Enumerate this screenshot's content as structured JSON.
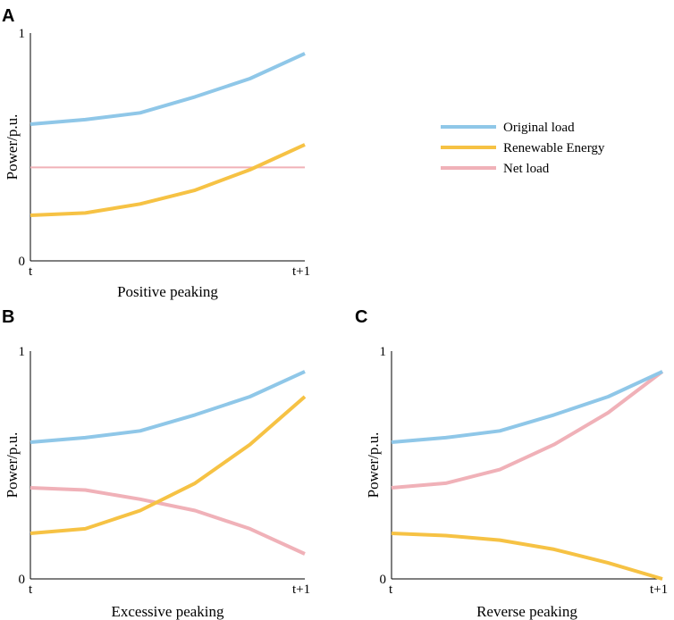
{
  "chart_data": [
    {
      "type": "line",
      "panel": "A",
      "xlabel": "Positive peaking",
      "ylabel": "Power/p.u.",
      "x_ticks": [
        "t",
        "t+1"
      ],
      "y_ticks": [
        "0",
        "1"
      ],
      "xlim": [
        0,
        1
      ],
      "ylim": [
        0,
        1
      ],
      "x": [
        0,
        0.2,
        0.4,
        0.6,
        0.8,
        1.0
      ],
      "series": [
        {
          "name": "Original load",
          "color": "#8fc7e8",
          "values": [
            0.6,
            0.62,
            0.65,
            0.72,
            0.8,
            0.91
          ]
        },
        {
          "name": "Renewable Energy",
          "color": "#f6c244",
          "values": [
            0.2,
            0.21,
            0.25,
            0.31,
            0.4,
            0.51
          ]
        },
        {
          "name": "Net load",
          "color": "#f0b1b8",
          "values": [
            0.41,
            0.41,
            0.41,
            0.41,
            0.41,
            0.41
          ]
        }
      ]
    },
    {
      "type": "line",
      "panel": "B",
      "xlabel": "Excessive peaking",
      "ylabel": "Power/p.u.",
      "x_ticks": [
        "t",
        "t+1"
      ],
      "y_ticks": [
        "0",
        "1"
      ],
      "xlim": [
        0,
        1
      ],
      "ylim": [
        0,
        1
      ],
      "x": [
        0,
        0.2,
        0.4,
        0.6,
        0.8,
        1.0
      ],
      "series": [
        {
          "name": "Original load",
          "color": "#8fc7e8",
          "values": [
            0.6,
            0.62,
            0.65,
            0.72,
            0.8,
            0.91
          ]
        },
        {
          "name": "Renewable Energy",
          "color": "#f6c244",
          "values": [
            0.2,
            0.22,
            0.3,
            0.42,
            0.59,
            0.8
          ]
        },
        {
          "name": "Net load",
          "color": "#f0b1b8",
          "values": [
            0.4,
            0.39,
            0.35,
            0.3,
            0.22,
            0.11
          ]
        }
      ]
    },
    {
      "type": "line",
      "panel": "C",
      "xlabel": "Reverse peaking",
      "ylabel": "Power/p.u.",
      "x_ticks": [
        "t",
        "t+1"
      ],
      "y_ticks": [
        "0",
        "1"
      ],
      "xlim": [
        0,
        1
      ],
      "ylim": [
        0,
        1
      ],
      "x": [
        0,
        0.2,
        0.4,
        0.6,
        0.8,
        1.0
      ],
      "series": [
        {
          "name": "Original load",
          "color": "#8fc7e8",
          "values": [
            0.6,
            0.62,
            0.65,
            0.72,
            0.8,
            0.91
          ]
        },
        {
          "name": "Renewable Energy",
          "color": "#f6c244",
          "values": [
            0.2,
            0.19,
            0.17,
            0.13,
            0.07,
            0.0
          ]
        },
        {
          "name": "Net load",
          "color": "#f0b1b8",
          "values": [
            0.4,
            0.42,
            0.48,
            0.59,
            0.73,
            0.91
          ]
        }
      ]
    }
  ],
  "legend": [
    {
      "label": "Original load",
      "color": "#8fc7e8"
    },
    {
      "label": "Renewable Energy",
      "color": "#f6c244"
    },
    {
      "label": "Net load",
      "color": "#f0b1b8"
    }
  ]
}
